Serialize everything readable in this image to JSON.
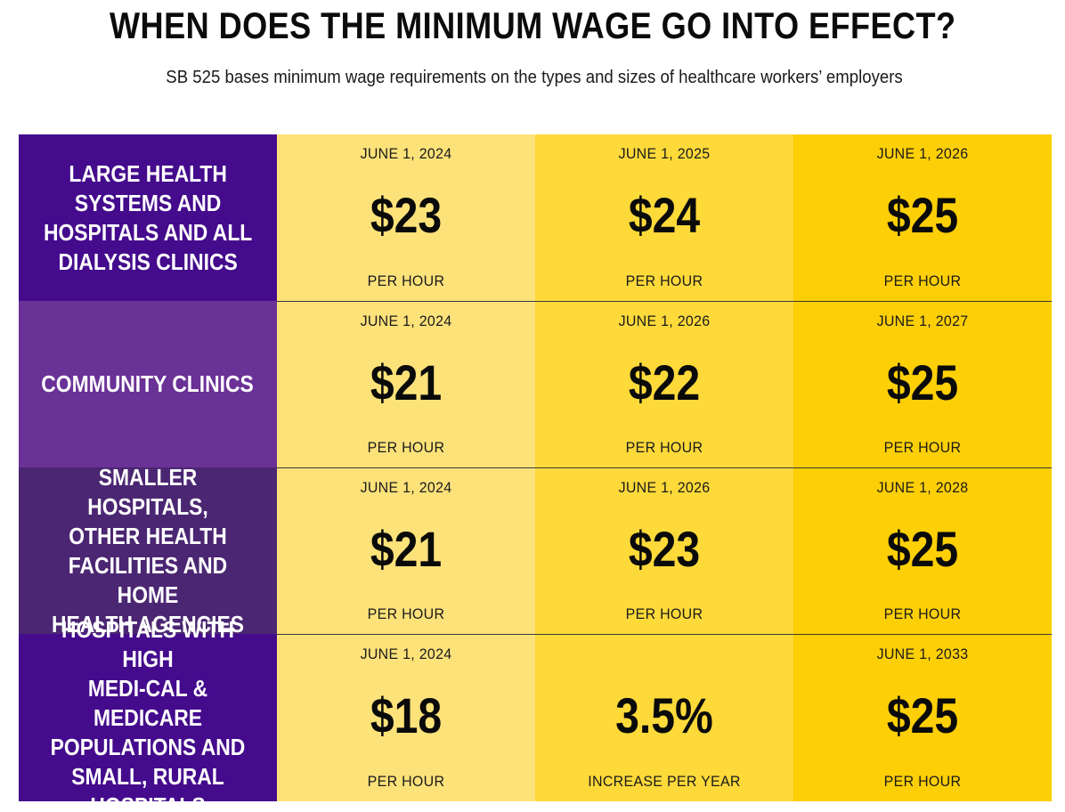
{
  "title": "WHEN DOES THE MINIMUM WAGE GO INTO EFFECT?",
  "subtitle": "SB 525 bases minimum wage requirements on the types and sizes of healthcare workers’ employers",
  "colors": {
    "row_label_1": "#440b8c",
    "row_label_2": "#6a3196",
    "row_label_3": "#4b2672",
    "row_label_4": "#440b8c",
    "col_1": "#fde27a",
    "col_2": "#fdd93a",
    "col_3": "#fdcf06"
  },
  "rows": [
    {
      "label": "LARGE HEALTH\nSYSTEMS AND\nHOSPITALS AND ALL\nDIALYSIS CLINICS",
      "cells": [
        {
          "date": "JUNE 1, 2024",
          "amount": "$23",
          "unit": "PER HOUR"
        },
        {
          "date": "JUNE 1, 2025",
          "amount": "$24",
          "unit": "PER HOUR"
        },
        {
          "date": "JUNE 1, 2026",
          "amount": "$25",
          "unit": "PER HOUR"
        }
      ]
    },
    {
      "label": "COMMUNITY CLINICS",
      "cells": [
        {
          "date": "JUNE 1, 2024",
          "amount": "$21",
          "unit": "PER HOUR"
        },
        {
          "date": "JUNE 1, 2026",
          "amount": "$22",
          "unit": "PER HOUR"
        },
        {
          "date": "JUNE 1, 2027",
          "amount": "$25",
          "unit": "PER HOUR"
        }
      ]
    },
    {
      "label": "SMALLER HOSPITALS,\nOTHER HEALTH\nFACILITIES AND HOME\nHEALTH AGENCIES",
      "cells": [
        {
          "date": "JUNE 1, 2024",
          "amount": "$21",
          "unit": "PER HOUR"
        },
        {
          "date": "JUNE 1, 2026",
          "amount": "$23",
          "unit": "PER HOUR"
        },
        {
          "date": "JUNE 1, 2028",
          "amount": "$25",
          "unit": "PER HOUR"
        }
      ]
    },
    {
      "label": "HOSPITALS WITH HIGH\nMEDI-CAL & MEDICARE\nPOPULATIONS AND\nSMALL, RURAL\nHOSPITALS",
      "cells": [
        {
          "date": "JUNE 1, 2024",
          "amount": "$18",
          "unit": "PER HOUR"
        },
        {
          "date": "",
          "amount": "3.5%",
          "unit": "INCREASE PER YEAR"
        },
        {
          "date": "JUNE 1, 2033",
          "amount": "$25",
          "unit": "PER HOUR"
        }
      ]
    }
  ]
}
